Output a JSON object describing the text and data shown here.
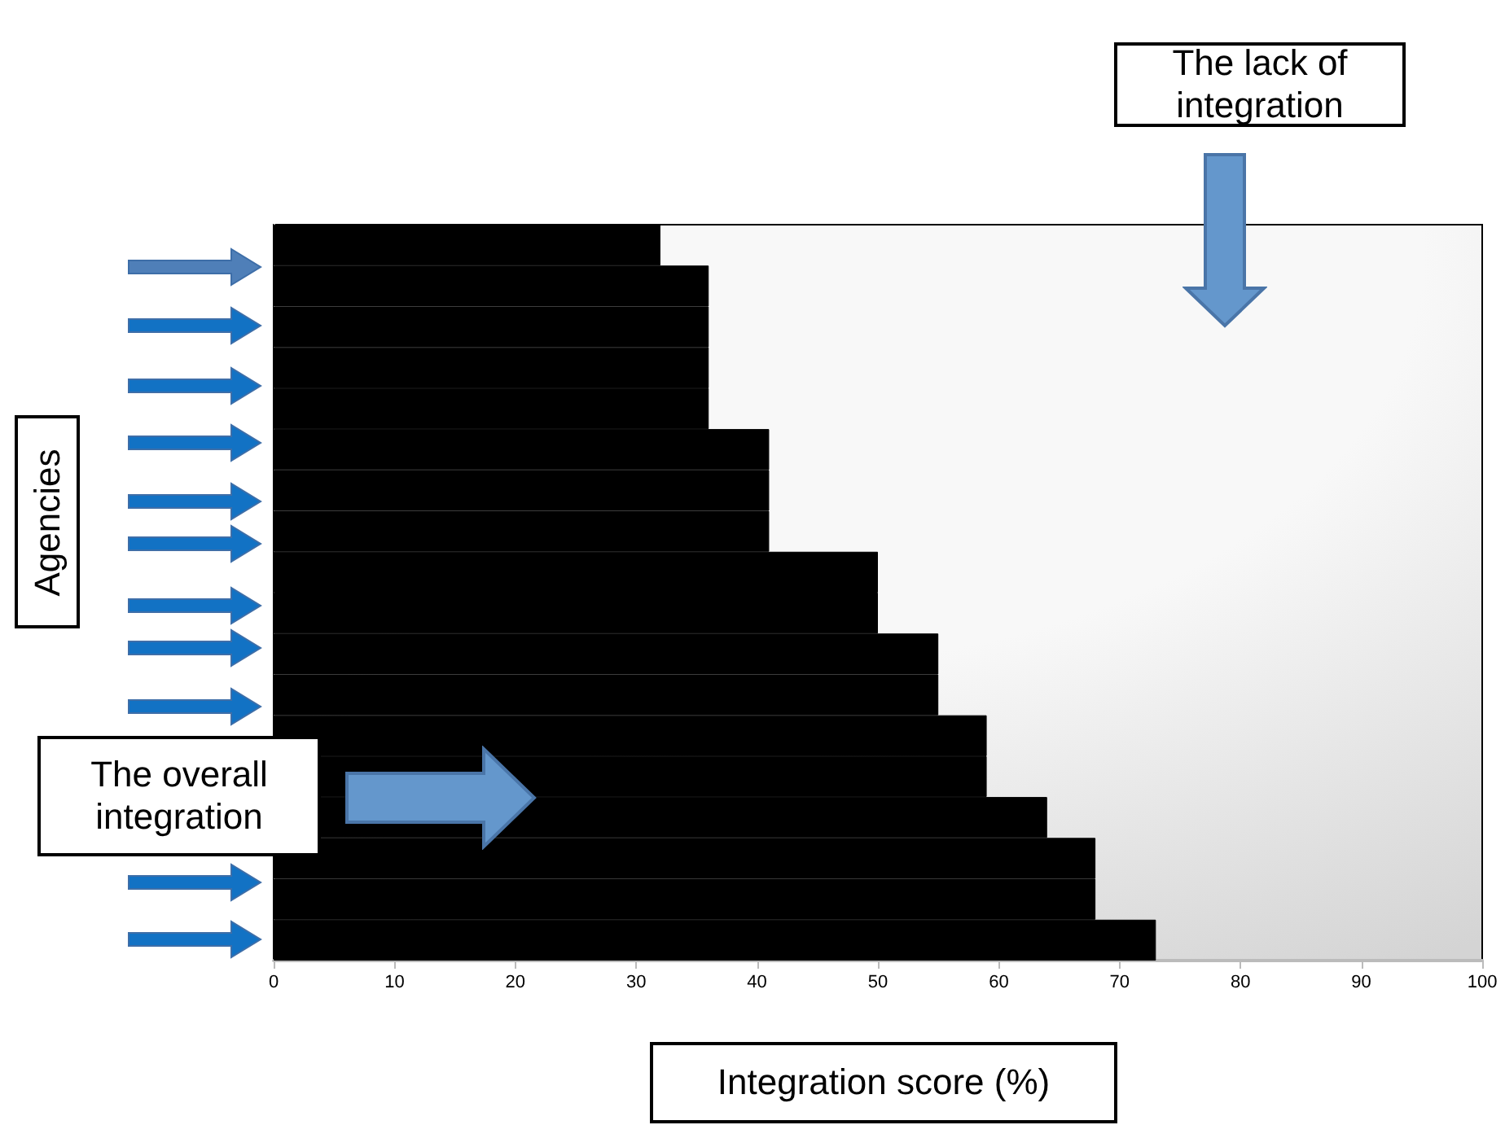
{
  "chart_data": {
    "type": "bar",
    "orientation": "horizontal",
    "xlabel": "Integration score (%)",
    "categories": [
      null,
      null,
      null,
      null,
      null,
      null,
      null,
      null,
      null,
      null,
      null,
      null,
      null,
      null,
      null,
      null,
      null,
      null
    ],
    "values": [
      32,
      36,
      36,
      36,
      36,
      41,
      41,
      41,
      50,
      50,
      55,
      55,
      59,
      59,
      64,
      68,
      68,
      73
    ],
    "color": "#000000",
    "xlim": [
      0,
      100
    ],
    "xticks": [
      0,
      10,
      20,
      30,
      40,
      50,
      60,
      70,
      80,
      90,
      100
    ],
    "grid": false,
    "annotations": [
      "The lack of integration",
      "The overall integration",
      "Agencies"
    ]
  }
}
